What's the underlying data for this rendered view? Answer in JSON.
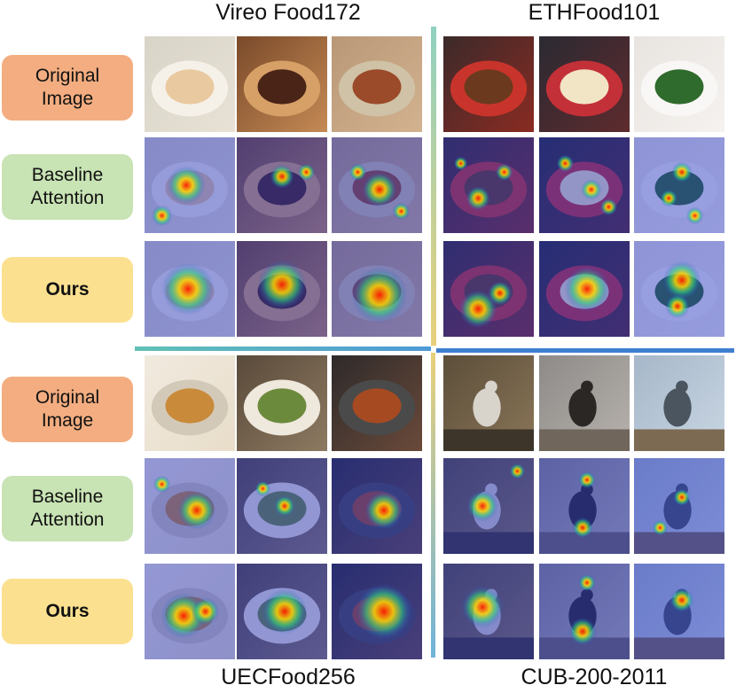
{
  "titles": {
    "q1": "Vireo Food172",
    "q2": "ETHFood101",
    "q3": "UECFood256",
    "q4": "CUB-200-2011"
  },
  "labels": {
    "original": [
      "Original",
      "Image"
    ],
    "baseline": [
      "Baseline",
      "Attention"
    ],
    "ours": "Ours"
  },
  "colors": {
    "original_box": "#f3ad80",
    "baseline_box": "#c8e3b4",
    "ours_box": "#fbe08f",
    "divider_horizontal": "#4d9ad6",
    "divider_vertical": "#e8d07a"
  },
  "panels": [
    {
      "dataset": "Vireo Food172",
      "rows": [
        "original",
        "baseline",
        "ours"
      ],
      "columns": 3
    },
    {
      "dataset": "ETHFood101",
      "rows": [
        "original",
        "baseline",
        "ours"
      ],
      "columns": 3
    },
    {
      "dataset": "UECFood256",
      "rows": [
        "original",
        "baseline",
        "ours"
      ],
      "columns": 3
    },
    {
      "dataset": "CUB-200-2011",
      "rows": [
        "original",
        "baseline",
        "ours"
      ],
      "columns": 3
    }
  ]
}
